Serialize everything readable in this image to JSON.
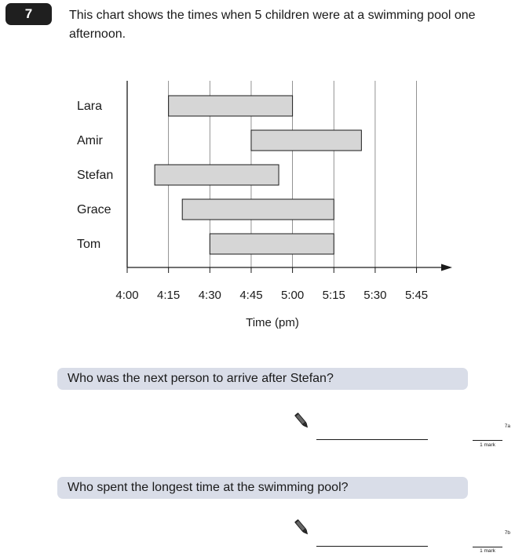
{
  "question": {
    "number": "7",
    "text": "This chart shows the times when 5 children were at a swimming pool one afternoon."
  },
  "chart_data": {
    "type": "bar",
    "orientation": "horizontal-range",
    "categories": [
      "Lara",
      "Amir",
      "Stefan",
      "Grace",
      "Tom"
    ],
    "ranges": [
      {
        "name": "Lara",
        "start": "4:15",
        "end": "5:00"
      },
      {
        "name": "Amir",
        "start": "4:45",
        "end": "5:25"
      },
      {
        "name": "Stefan",
        "start": "4:10",
        "end": "4:55"
      },
      {
        "name": "Grace",
        "start": "4:20",
        "end": "5:15"
      },
      {
        "name": "Tom",
        "start": "4:30",
        "end": "5:15"
      }
    ],
    "x_ticks": [
      "4:00",
      "4:15",
      "4:30",
      "4:45",
      "5:00",
      "5:15",
      "5:30",
      "5:45"
    ],
    "xlabel": "Time (pm)",
    "xlim": [
      "4:00",
      "5:55"
    ],
    "grid": true,
    "bar_color": "#d6d6d6"
  },
  "part_a": {
    "text": "Who was the next person to arrive after Stefan?",
    "ref": "7a",
    "mark": "1 mark"
  },
  "part_b": {
    "text": "Who spent the longest time at the swimming pool?",
    "ref": "7b",
    "mark": "1 mark"
  },
  "icons": {
    "answer": "pencil-icon"
  }
}
